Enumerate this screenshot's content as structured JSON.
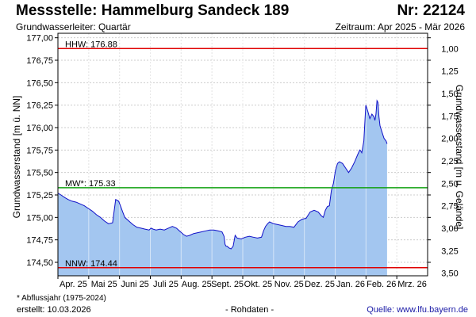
{
  "header": {
    "title": "Messstelle: Hammelburg Sandeck 189",
    "number": "Nr: 22124",
    "subtitle": "Grundwasserleiter: Quartär",
    "period": "Zeitraum: Apr 2025 - Mär 2026"
  },
  "footer": {
    "note": "* Abflussjahr (1975-2024)",
    "created": "erstellt:  10.03.2026",
    "raw": "- Rohdaten -",
    "source": "Quelle: www.lfu.bayern.de"
  },
  "colors": {
    "fill": "#a3c6f0",
    "line": "#1010c8",
    "hhw": "#e00000",
    "nnw": "#e00000",
    "mw": "#10a010",
    "grid": "#cccccc"
  },
  "chart_data": {
    "type": "area",
    "ylabel": "Grundwasserstand [m ü. NN]",
    "ylabel_right": "Grundwasserstand [m u. Gelände]",
    "ylim": [
      174.35,
      177.05
    ],
    "y_ticks": [
      "177,00",
      "176,75",
      "176,50",
      "176,25",
      "176,00",
      "175,75",
      "175,50",
      "175,25",
      "175,00",
      "174,75",
      "174,50"
    ],
    "y_tick_values": [
      177.0,
      176.75,
      176.5,
      176.25,
      176.0,
      175.75,
      175.5,
      175.25,
      175.0,
      174.75,
      174.5
    ],
    "y2_ticks": [
      "1,00",
      "1,25",
      "1,50",
      "1,75",
      "2,00",
      "2,25",
      "2,50",
      "2,75",
      "3,00",
      "3,25",
      "3,50"
    ],
    "y2_offset": 177.88,
    "x_months": [
      "Apr. 25",
      "Mai 25",
      "Juni 25",
      "Juli 25",
      "Aug. 25",
      "Sept. 25",
      "Okt. 25",
      "Nov. 25",
      "Dez. 25",
      "Jan. 26",
      "Feb. 26",
      "Mrz. 26"
    ],
    "x_range_days": [
      0,
      365
    ],
    "reference_lines": [
      {
        "label": "HHW: 176.88",
        "value": 176.88,
        "color": "#e00000"
      },
      {
        "label": "MW*: 175.33",
        "value": 175.33,
        "color": "#10a010"
      },
      {
        "label": "NNW: 174.44",
        "value": 174.44,
        "color": "#e00000"
      }
    ],
    "series": [
      {
        "x": [
          0,
          3,
          7,
          10,
          14,
          18,
          22,
          26,
          30,
          34,
          38,
          42,
          46,
          50,
          54,
          57,
          60,
          62,
          64,
          66,
          70,
          74,
          78,
          82,
          86,
          90,
          92,
          94,
          97,
          101,
          105,
          109,
          113,
          117,
          121,
          124,
          127,
          130,
          134,
          138,
          142,
          146,
          150,
          154,
          158,
          162,
          164,
          165,
          166,
          167,
          169,
          171,
          173,
          175,
          177,
          181,
          185,
          189,
          193,
          197,
          201,
          203,
          205,
          207,
          209,
          213,
          217,
          221,
          225,
          229,
          233,
          235,
          237,
          241,
          245,
          249,
          253,
          257,
          260,
          262,
          264,
          266,
          268,
          270,
          272,
          274,
          276,
          278,
          281,
          284,
          287,
          290,
          293,
          296,
          298,
          299,
          300,
          302,
          304,
          306,
          308,
          310,
          312,
          313,
          314,
          315,
          316,
          317,
          318,
          320,
          322,
          324,
          325
        ],
        "y": [
          175.27,
          175.25,
          175.22,
          175.2,
          175.18,
          175.17,
          175.15,
          175.13,
          175.1,
          175.07,
          175.03,
          175.0,
          174.96,
          174.93,
          174.94,
          175.2,
          175.18,
          175.12,
          175.06,
          175.0,
          174.96,
          174.92,
          174.89,
          174.88,
          174.87,
          174.86,
          174.88,
          174.87,
          174.86,
          174.87,
          174.86,
          174.88,
          174.9,
          174.88,
          174.84,
          174.81,
          174.79,
          174.8,
          174.82,
          174.83,
          174.84,
          174.85,
          174.86,
          174.86,
          174.85,
          174.84,
          174.79,
          174.7,
          174.68,
          174.68,
          174.66,
          174.65,
          174.68,
          174.8,
          174.77,
          174.76,
          174.78,
          174.79,
          174.78,
          174.77,
          174.78,
          174.85,
          174.9,
          174.93,
          174.95,
          174.93,
          174.92,
          174.91,
          174.9,
          174.9,
          174.89,
          174.92,
          174.95,
          174.98,
          174.99,
          175.06,
          175.08,
          175.06,
          175.02,
          175.0,
          175.08,
          175.12,
          175.13,
          175.3,
          175.38,
          175.52,
          175.6,
          175.62,
          175.6,
          175.55,
          175.5,
          175.55,
          175.62,
          175.7,
          175.75,
          175.74,
          175.72,
          175.85,
          176.25,
          176.18,
          176.1,
          176.15,
          176.12,
          176.08,
          176.15,
          176.3,
          176.28,
          176.12,
          176.02,
          175.95,
          175.88,
          175.85,
          175.82
        ]
      }
    ]
  }
}
